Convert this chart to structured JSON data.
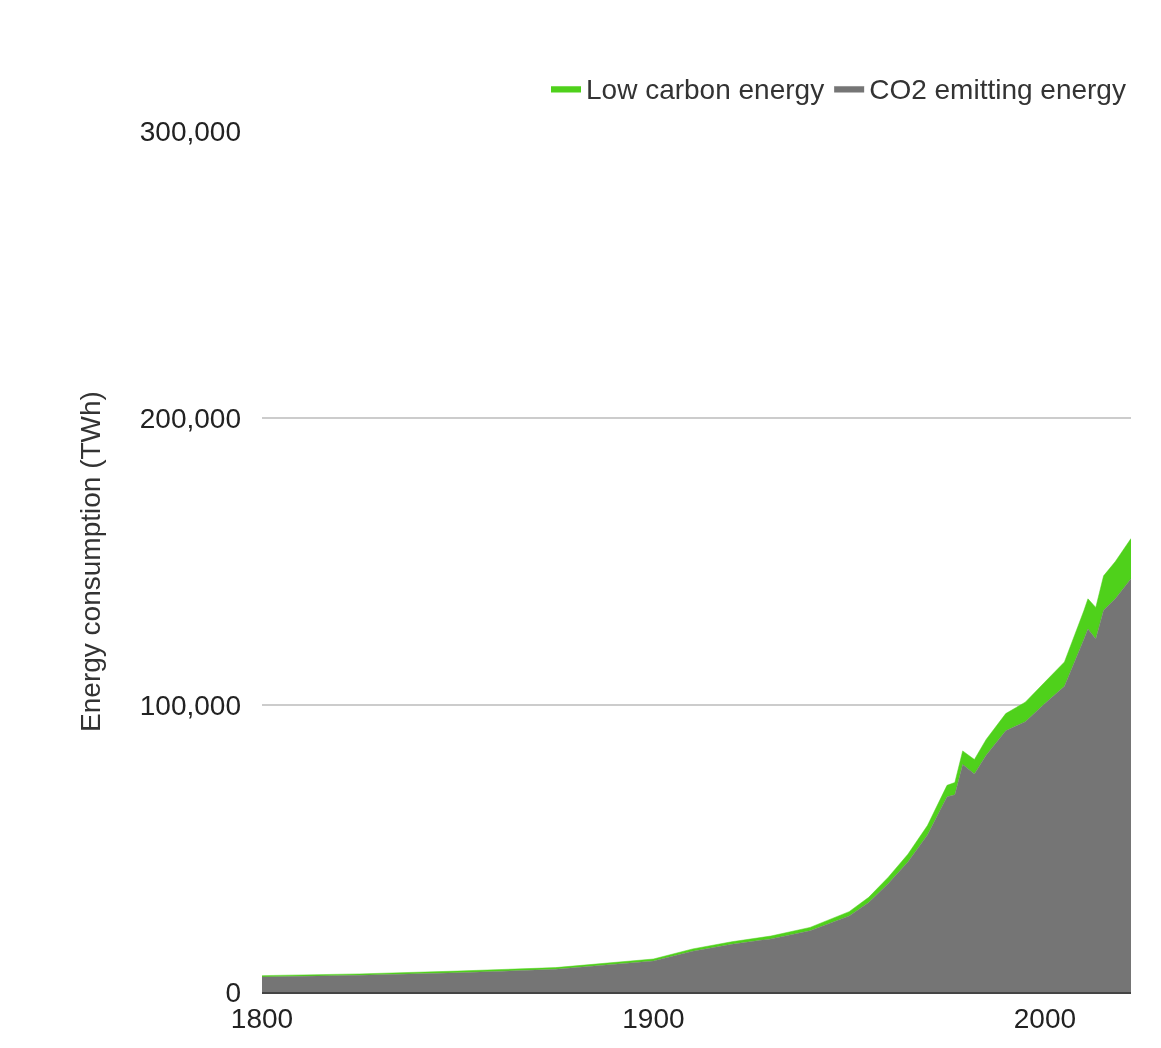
{
  "chart_data": {
    "type": "area",
    "stacked": true,
    "ylabel": "Energy consumption (TWh)",
    "x": [
      1800,
      1825,
      1850,
      1875,
      1900,
      1910,
      1920,
      1930,
      1940,
      1950,
      1955,
      1960,
      1965,
      1970,
      1975,
      1977,
      1979,
      1982,
      1985,
      1990,
      1995,
      2000,
      2005,
      2010,
      2011,
      2013,
      2015,
      2018,
      2022
    ],
    "series": [
      {
        "name": "CO2 emitting energy",
        "color": "#757575",
        "values": [
          5200,
          5800,
          6700,
          7900,
          10800,
          14200,
          16600,
          18500,
          21300,
          26500,
          31200,
          37800,
          45300,
          54700,
          68000,
          68700,
          79300,
          76000,
          82500,
          91000,
          94200,
          100500,
          106500,
          123000,
          126500,
          123000,
          133000,
          137000,
          144000
        ]
      },
      {
        "name": "Low carbon energy",
        "color": "#4fd11b",
        "values": [
          500,
          500,
          600,
          600,
          700,
          800,
          900,
          1000,
          1200,
          1500,
          1800,
          2200,
          2700,
          3300,
          4000,
          4300,
          4700,
          5000,
          5500,
          6000,
          6800,
          7500,
          8500,
          10000,
          10500,
          11000,
          12000,
          13000,
          14000
        ]
      }
    ],
    "xlim": [
      1800,
      2022
    ],
    "xticks": [
      1800,
      1900,
      2000
    ],
    "ylim": [
      0,
      300000
    ],
    "yticks": [
      {
        "value": 0,
        "label": "0"
      },
      {
        "value": 100000,
        "label": "100,000"
      },
      {
        "value": 200000,
        "label": "200,000"
      },
      {
        "value": 300000,
        "label": "300,000"
      }
    ],
    "grid": "y",
    "legend": "top right"
  }
}
